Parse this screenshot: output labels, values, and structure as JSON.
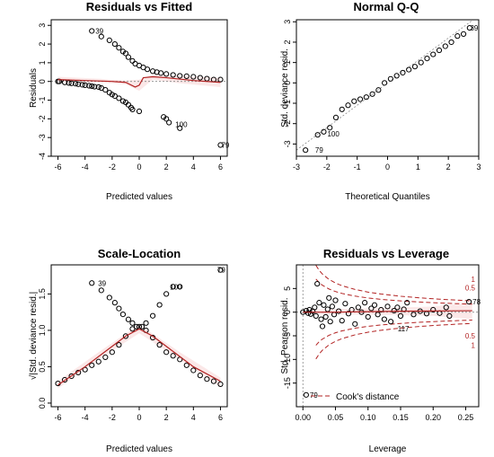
{
  "chart_data": [
    {
      "type": "scatter",
      "title": "Residuals vs Fitted",
      "xlabel": "Predicted values",
      "ylabel": "Residuals",
      "xlim": [
        -6.5,
        6.5
      ],
      "ylim": [
        -4,
        3.3
      ],
      "xticks": [
        -6,
        -4,
        -2,
        0,
        2,
        4,
        6
      ],
      "yticks": [
        -4,
        -3,
        -2,
        -1,
        0,
        1,
        2,
        3
      ],
      "annotations": [
        {
          "text": "39",
          "x": -3.5,
          "y": 2.7
        },
        {
          "text": "100",
          "x": 2.4,
          "y": -2.3
        },
        {
          "text": "79",
          "x": 5.8,
          "y": -3.4
        }
      ],
      "points": [
        [
          -6.0,
          0.0
        ],
        [
          -5.9,
          0.0
        ],
        [
          -5.5,
          -0.05
        ],
        [
          -5.2,
          -0.08
        ],
        [
          -5.0,
          -0.1
        ],
        [
          -4.7,
          -0.12
        ],
        [
          -4.5,
          -0.15
        ],
        [
          -4.2,
          -0.18
        ],
        [
          -4.0,
          -0.2
        ],
        [
          -3.7,
          -0.23
        ],
        [
          -3.5,
          -0.25
        ],
        [
          -3.3,
          -0.28
        ],
        [
          -3.0,
          -0.3
        ],
        [
          -2.8,
          -0.35
        ],
        [
          -2.5,
          -0.45
        ],
        [
          -2.2,
          -0.6
        ],
        [
          -2.0,
          -0.7
        ],
        [
          -1.8,
          -0.78
        ],
        [
          -1.5,
          -0.9
        ],
        [
          -1.2,
          -1.05
        ],
        [
          -1.0,
          -1.12
        ],
        [
          -0.8,
          -1.25
        ],
        [
          -0.6,
          -1.4
        ],
        [
          -0.5,
          -1.5
        ],
        [
          0.0,
          -1.6
        ],
        [
          1.8,
          -1.9
        ],
        [
          2.0,
          -2.0
        ],
        [
          2.2,
          -2.2
        ],
        [
          3.0,
          -2.5
        ],
        [
          6.0,
          -3.4
        ],
        [
          -3.5,
          2.7
        ],
        [
          -2.8,
          2.4
        ],
        [
          -2.2,
          2.2
        ],
        [
          -1.8,
          2.0
        ],
        [
          -1.5,
          1.8
        ],
        [
          -1.2,
          1.6
        ],
        [
          -1.0,
          1.5
        ],
        [
          -0.8,
          1.3
        ],
        [
          -0.5,
          1.1
        ],
        [
          -0.3,
          0.95
        ],
        [
          0.0,
          0.85
        ],
        [
          0.3,
          0.75
        ],
        [
          0.6,
          0.65
        ],
        [
          1.0,
          0.55
        ],
        [
          1.3,
          0.5
        ],
        [
          1.6,
          0.45
        ],
        [
          2.0,
          0.4
        ],
        [
          2.5,
          0.35
        ],
        [
          3.0,
          0.3
        ],
        [
          3.5,
          0.28
        ],
        [
          4.0,
          0.25
        ],
        [
          4.5,
          0.2
        ],
        [
          5.0,
          0.15
        ],
        [
          5.5,
          0.1
        ],
        [
          6.0,
          0.1
        ]
      ],
      "smooth": [
        [
          -6,
          0.1
        ],
        [
          -4,
          0.05
        ],
        [
          -2,
          0.0
        ],
        [
          -1,
          -0.05
        ],
        [
          -0.3,
          -0.3
        ],
        [
          0,
          -0.2
        ],
        [
          0.3,
          0.2
        ],
        [
          1,
          0.25
        ],
        [
          2,
          0.2
        ],
        [
          4,
          0.05
        ],
        [
          6,
          -0.05
        ]
      ]
    },
    {
      "type": "scatter",
      "title": "Normal Q-Q",
      "xlabel": "Theoretical Quantiles",
      "ylabel": "Std. deviance resid.",
      "xlim": [
        -3,
        3
      ],
      "ylim": [
        -3.6,
        3.1
      ],
      "xticks": [
        -3,
        -2,
        -1,
        0,
        1,
        2,
        3
      ],
      "yticks": [
        -3,
        -2,
        -1,
        0,
        1,
        2,
        3
      ],
      "annotations": [
        {
          "text": "39",
          "x": 2.6,
          "y": 2.7
        },
        {
          "text": "100",
          "x": -2.1,
          "y": -2.5
        },
        {
          "text": "79",
          "x": -2.5,
          "y": -3.3
        }
      ],
      "points": [
        [
          -2.7,
          -3.3
        ],
        [
          -2.3,
          -2.55
        ],
        [
          -2.1,
          -2.4
        ],
        [
          -1.9,
          -2.2
        ],
        [
          -1.7,
          -1.7
        ],
        [
          -1.5,
          -1.3
        ],
        [
          -1.3,
          -1.1
        ],
        [
          -1.1,
          -0.9
        ],
        [
          -0.9,
          -0.8
        ],
        [
          -0.7,
          -0.7
        ],
        [
          -0.5,
          -0.55
        ],
        [
          -0.3,
          -0.35
        ],
        [
          -0.1,
          0.0
        ],
        [
          0.1,
          0.2
        ],
        [
          0.3,
          0.35
        ],
        [
          0.5,
          0.5
        ],
        [
          0.7,
          0.65
        ],
        [
          0.9,
          0.8
        ],
        [
          1.1,
          1.0
        ],
        [
          1.3,
          1.2
        ],
        [
          1.5,
          1.4
        ],
        [
          1.7,
          1.6
        ],
        [
          1.9,
          1.8
        ],
        [
          2.1,
          2.0
        ],
        [
          2.3,
          2.3
        ],
        [
          2.5,
          2.4
        ],
        [
          2.7,
          2.7
        ]
      ],
      "refline": [
        [
          -3,
          -3.3
        ],
        [
          3,
          3.3
        ]
      ]
    },
    {
      "type": "scatter",
      "title": "Scale-Location",
      "xlabel": "Predicted values",
      "ylabel": "√|Std. deviance resid.|",
      "xlim": [
        -6.5,
        6.5
      ],
      "ylim": [
        -0.05,
        1.9
      ],
      "xticks": [
        -6,
        -4,
        -2,
        0,
        2,
        4,
        6
      ],
      "yticks": [
        0.0,
        0.5,
        1.0,
        1.5
      ],
      "annotations": [
        {
          "text": "39",
          "x": -3.3,
          "y": 1.65
        },
        {
          "text": "100",
          "x": 2.0,
          "y": 1.6
        },
        {
          "text": "79",
          "x": 5.5,
          "y": 1.83
        }
      ],
      "points": [
        [
          -6.0,
          0.27
        ],
        [
          -5.5,
          0.32
        ],
        [
          -5.0,
          0.37
        ],
        [
          -4.5,
          0.42
        ],
        [
          -4.0,
          0.46
        ],
        [
          -3.5,
          0.52
        ],
        [
          -3.0,
          0.57
        ],
        [
          -2.5,
          0.63
        ],
        [
          -2.0,
          0.7
        ],
        [
          -1.5,
          0.8
        ],
        [
          -1.0,
          0.92
        ],
        [
          -0.5,
          1.02
        ],
        [
          0.0,
          1.05
        ],
        [
          0.5,
          1.0
        ],
        [
          1.0,
          0.9
        ],
        [
          1.5,
          0.8
        ],
        [
          2.0,
          0.7
        ],
        [
          2.5,
          0.65
        ],
        [
          3.0,
          0.6
        ],
        [
          3.5,
          0.52
        ],
        [
          4.0,
          0.45
        ],
        [
          4.5,
          0.38
        ],
        [
          5.0,
          0.33
        ],
        [
          5.5,
          0.3
        ],
        [
          6.0,
          0.26
        ],
        [
          -3.5,
          1.65
        ],
        [
          -2.8,
          1.55
        ],
        [
          -2.2,
          1.45
        ],
        [
          -1.8,
          1.38
        ],
        [
          -1.5,
          1.3
        ],
        [
          -1.2,
          1.22
        ],
        [
          -0.8,
          1.15
        ],
        [
          -0.5,
          1.1
        ],
        [
          -0.2,
          1.05
        ],
        [
          0.2,
          1.05
        ],
        [
          0.5,
          1.1
        ],
        [
          1.0,
          1.2
        ],
        [
          1.5,
          1.35
        ],
        [
          2.0,
          1.5
        ],
        [
          2.5,
          1.6
        ],
        [
          3.0,
          1.6
        ],
        [
          6.0,
          1.83
        ]
      ],
      "smooth": [
        [
          -6,
          0.25
        ],
        [
          -4,
          0.5
        ],
        [
          -2,
          0.78
        ],
        [
          -1,
          0.92
        ],
        [
          0,
          1.02
        ],
        [
          1,
          0.92
        ],
        [
          2,
          0.78
        ],
        [
          4,
          0.5
        ],
        [
          6,
          0.3
        ]
      ]
    },
    {
      "type": "scatter",
      "title": "Residuals vs Leverage",
      "xlabel": "Leverage",
      "ylabel": "Std. Pearson resid.",
      "xlim": [
        -0.01,
        0.27
      ],
      "ylim": [
        -20,
        10
      ],
      "xticks": [
        0.0,
        0.05,
        0.1,
        0.15,
        0.2,
        0.25
      ],
      "yticks": [
        -15,
        -10,
        -5,
        0,
        5
      ],
      "legend_text": "Cook's distance",
      "annotations": [
        {
          "text": "78",
          "x": 0.255,
          "y": 2.2
        },
        {
          "text": "117",
          "x": 0.14,
          "y": -3.5
        },
        {
          "text": "79",
          "x": 0.005,
          "y": -17.5
        }
      ],
      "cook_labels": [
        {
          "text": "1",
          "y": 7.0
        },
        {
          "text": "0.5",
          "y": 5.2
        },
        {
          "text": "0.5",
          "y": -5.0
        },
        {
          "text": "1",
          "y": -7.0
        }
      ],
      "points": [
        [
          0.0,
          0.0
        ],
        [
          0.005,
          0.3
        ],
        [
          0.008,
          -0.2
        ],
        [
          0.01,
          0.5
        ],
        [
          0.012,
          -0.4
        ],
        [
          0.015,
          0.2
        ],
        [
          0.018,
          1.0
        ],
        [
          0.02,
          -0.8
        ],
        [
          0.022,
          6.0
        ],
        [
          0.025,
          2.0
        ],
        [
          0.028,
          -1.5
        ],
        [
          0.03,
          -3.0
        ],
        [
          0.032,
          1.5
        ],
        [
          0.035,
          -1.0
        ],
        [
          0.038,
          0.6
        ],
        [
          0.04,
          3.0
        ],
        [
          0.042,
          -2.0
        ],
        [
          0.045,
          1.2
        ],
        [
          0.048,
          -0.5
        ],
        [
          0.05,
          2.5
        ],
        [
          0.055,
          0.2
        ],
        [
          0.06,
          -1.8
        ],
        [
          0.065,
          1.8
        ],
        [
          0.07,
          -0.3
        ],
        [
          0.075,
          0.5
        ],
        [
          0.08,
          -2.5
        ],
        [
          0.085,
          1.0
        ],
        [
          0.09,
          0.0
        ],
        [
          0.095,
          2.0
        ],
        [
          0.1,
          -1.0
        ],
        [
          0.105,
          0.8
        ],
        [
          0.11,
          1.5
        ],
        [
          0.115,
          -0.5
        ],
        [
          0.12,
          0.5
        ],
        [
          0.125,
          -1.5
        ],
        [
          0.13,
          1.2
        ],
        [
          0.135,
          -2.0
        ],
        [
          0.14,
          0.3
        ],
        [
          0.145,
          1.0
        ],
        [
          0.15,
          -0.8
        ],
        [
          0.155,
          0.6
        ],
        [
          0.16,
          2.0
        ],
        [
          0.17,
          -0.5
        ],
        [
          0.18,
          0.2
        ],
        [
          0.19,
          -0.3
        ],
        [
          0.2,
          0.5
        ],
        [
          0.21,
          -0.2
        ],
        [
          0.22,
          1.0
        ],
        [
          0.225,
          -0.8
        ],
        [
          0.255,
          2.2
        ],
        [
          0.005,
          -17.5
        ]
      ],
      "smooth": [
        [
          0,
          0
        ],
        [
          0.05,
          0.0
        ],
        [
          0.1,
          0.1
        ],
        [
          0.15,
          0.2
        ],
        [
          0.2,
          0.25
        ],
        [
          0.26,
          0.3
        ]
      ],
      "cook_x": [
        0.02,
        0.025,
        0.03,
        0.04,
        0.05,
        0.06,
        0.08,
        0.1,
        0.12,
        0.15,
        0.18,
        0.21,
        0.24,
        0.26
      ]
    }
  ]
}
